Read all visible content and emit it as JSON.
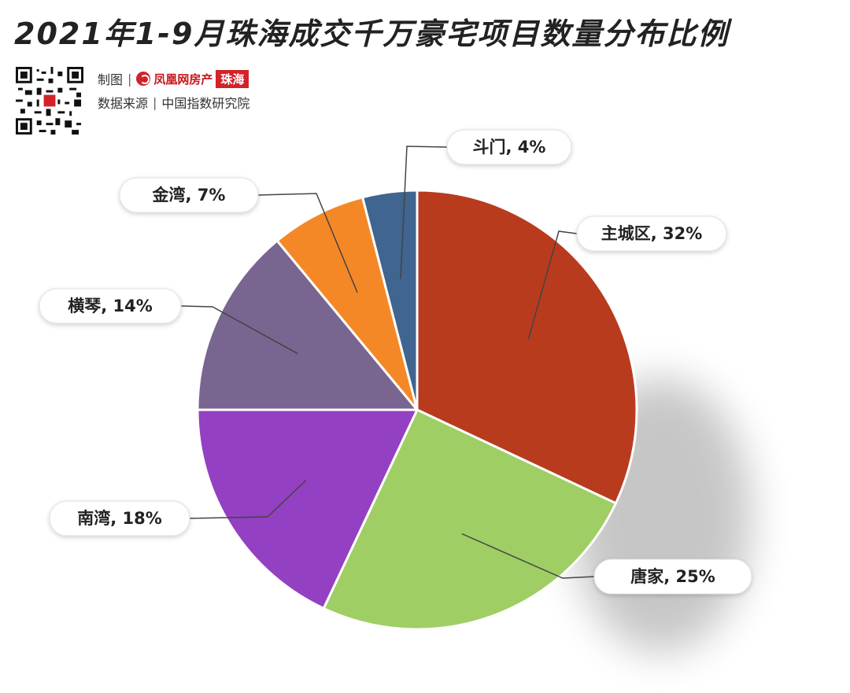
{
  "title": "2021年1-9月珠海成交千万豪宅项目数量分布比例",
  "credit": {
    "made_by_label": "制图",
    "brand_name": "凤凰网房产",
    "brand_tag": "珠海",
    "source_label": "数据来源",
    "source_name": "中国指数研究院"
  },
  "chart_data": {
    "type": "pie",
    "title": "2021年1-9月珠海成交千万豪宅项目数量分布比例",
    "slices": [
      {
        "name": "主城区",
        "value": 32,
        "label": "主城区, 32%",
        "color": "#b83b1e"
      },
      {
        "name": "唐家",
        "value": 25,
        "label": "唐家, 25%",
        "color": "#9fce65"
      },
      {
        "name": "南湾",
        "value": 18,
        "label": "南湾, 18%",
        "color": "#9440c2"
      },
      {
        "name": "横琴",
        "value": 14,
        "label": "横琴, 14%",
        "color": "#786691"
      },
      {
        "name": "金湾",
        "value": 7,
        "label": "金湾, 7%",
        "color": "#f58826"
      },
      {
        "name": "斗门",
        "value": 4,
        "label": "斗门, 4%",
        "color": "#3f6590"
      }
    ]
  }
}
